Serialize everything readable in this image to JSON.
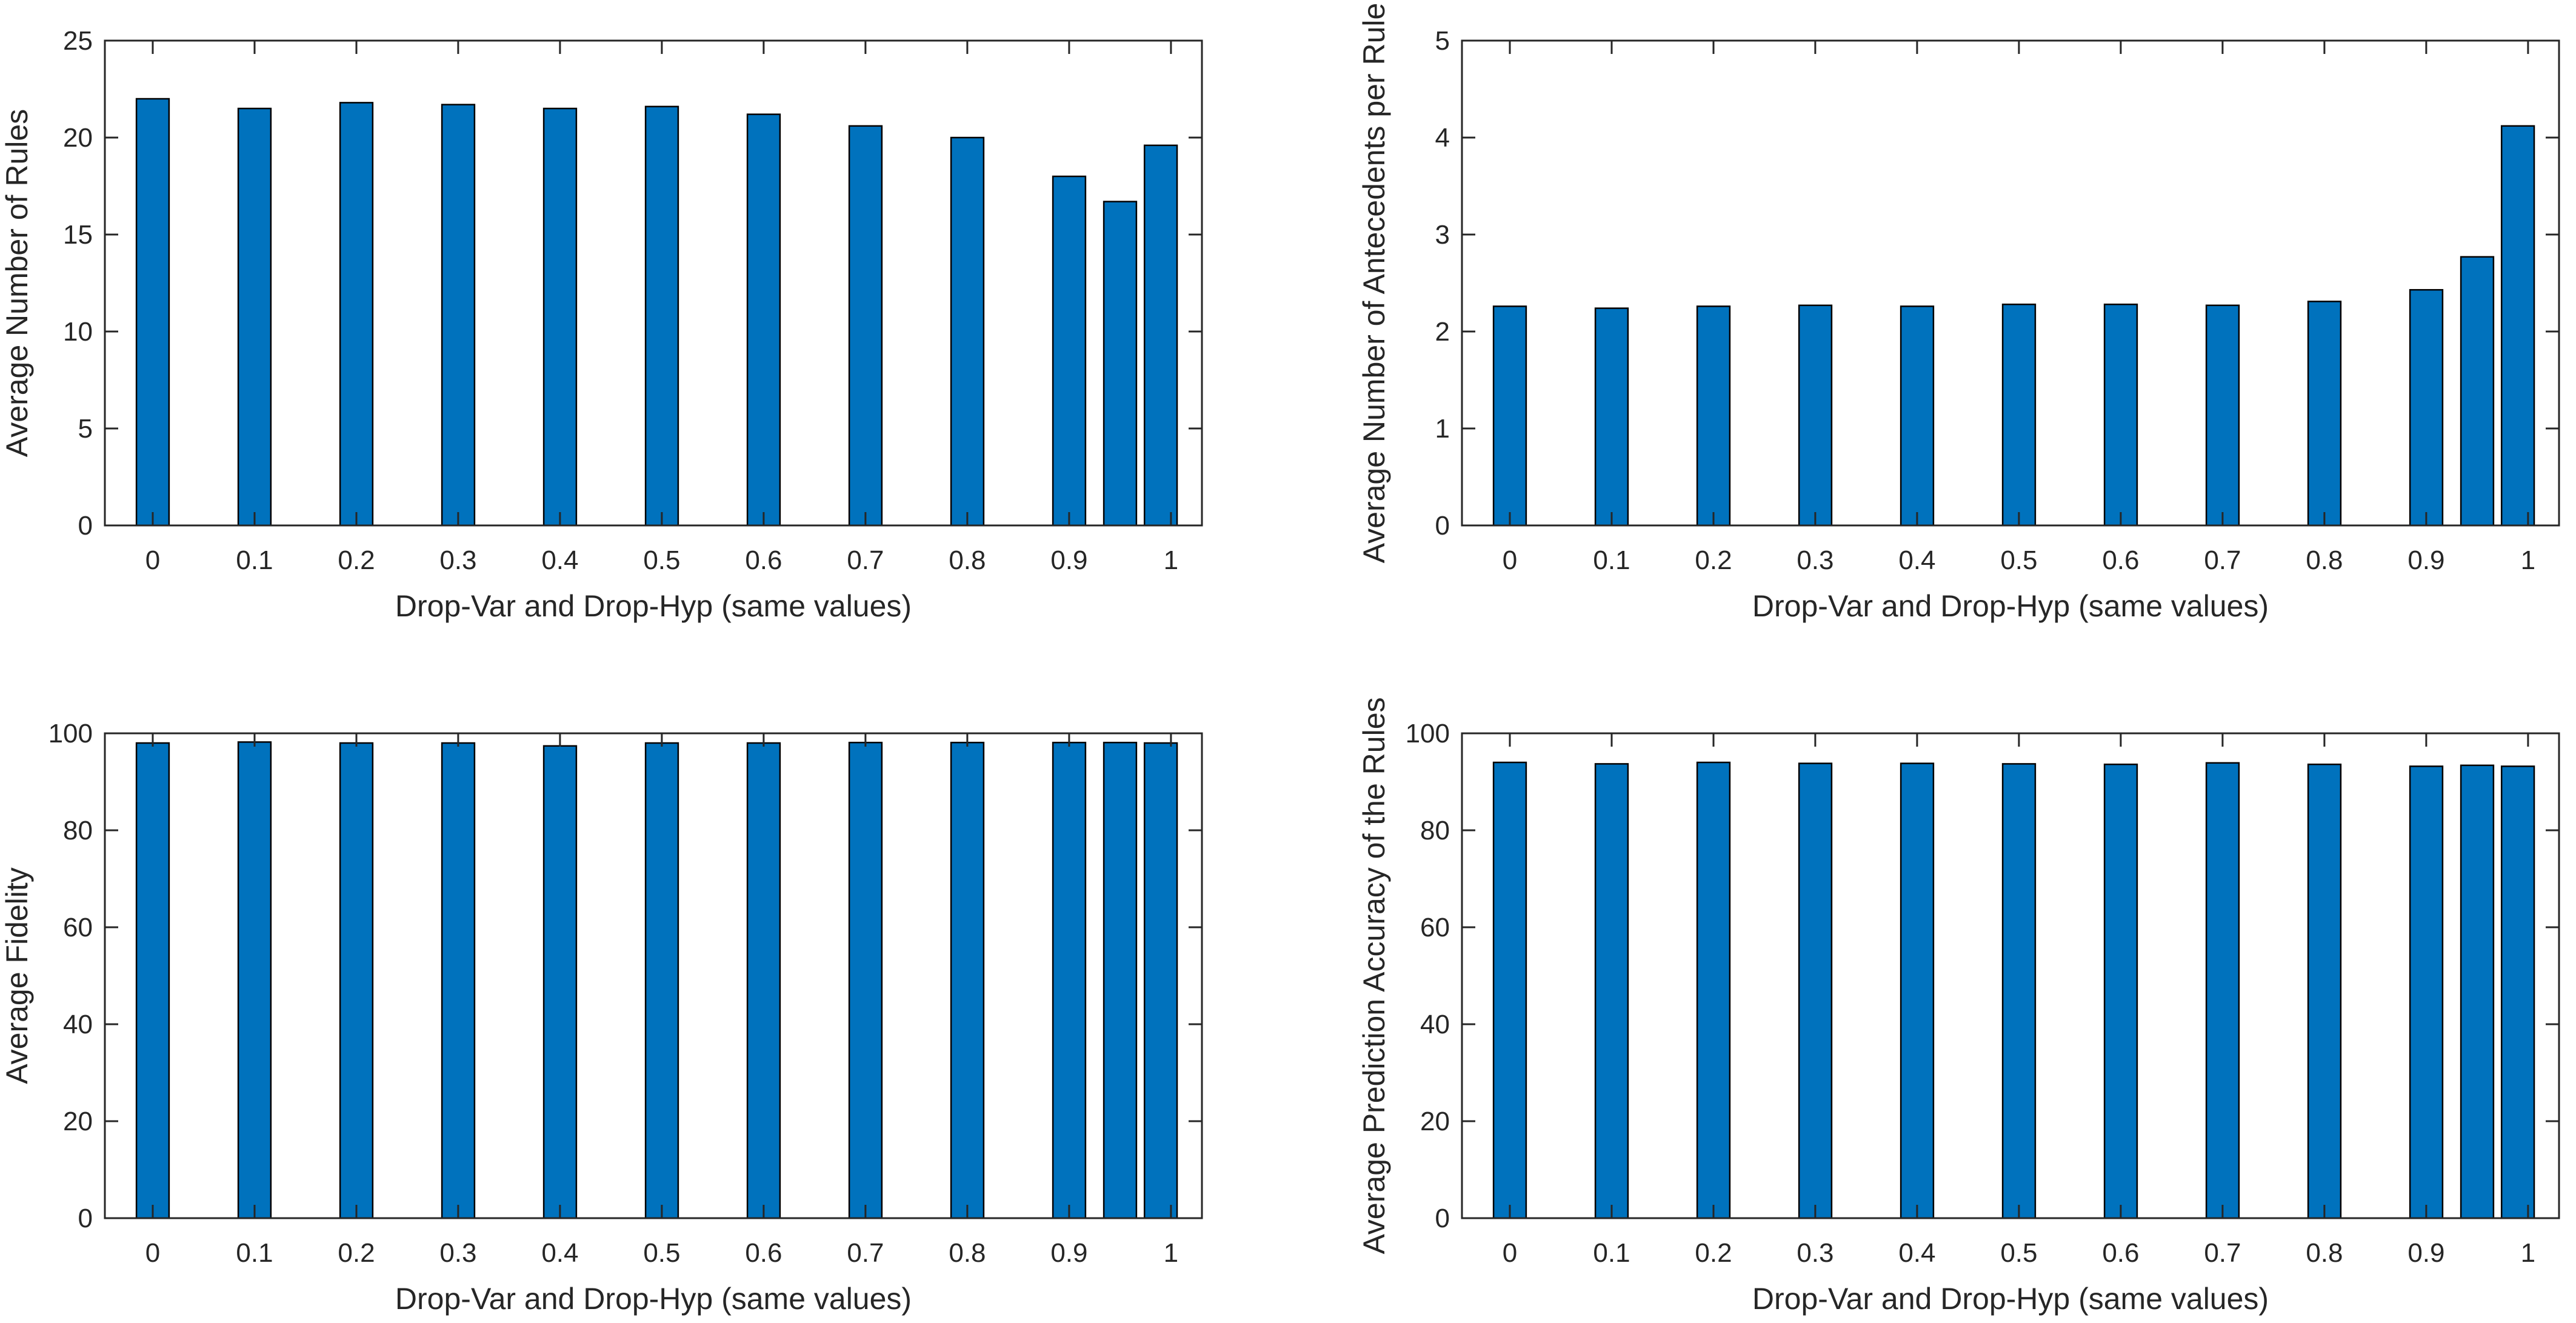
{
  "figure": {
    "background": "#ffffff",
    "bar_fill": "#0072BD",
    "bar_edge": "#000000",
    "axis_color": "#262626",
    "text_color": "#262626"
  },
  "chart_data": [
    {
      "id": "avg-number-of-rules",
      "type": "bar",
      "title": "",
      "xlabel": "Drop-Var and Drop-Hyp (same values)",
      "ylabel": "Average Number of Rules",
      "x": [
        0,
        0.1,
        0.2,
        0.3,
        0.4,
        0.5,
        0.6,
        0.7,
        0.8,
        0.9,
        0.95,
        0.99
      ],
      "values": [
        22.0,
        21.5,
        21.8,
        21.7,
        21.5,
        21.6,
        21.2,
        20.6,
        20.0,
        18.0,
        16.7,
        19.6
      ],
      "bar_width": 0.032,
      "xlim": [
        -0.047,
        1.0304
      ],
      "ylim": [
        0,
        25
      ],
      "yticks": [
        0,
        5,
        10,
        15,
        20,
        25
      ],
      "xticks": [
        0,
        0.1,
        0.2,
        0.3,
        0.4,
        0.5,
        0.6,
        0.7,
        0.8,
        0.9,
        1
      ],
      "xtick_labels": [
        "0",
        "0.1",
        "0.2",
        "0.3",
        "0.4",
        "0.5",
        "0.6",
        "0.7",
        "0.8",
        "0.9",
        "1"
      ],
      "grid": false,
      "legend": null
    },
    {
      "id": "avg-number-of-antecedents-per-rule",
      "type": "bar",
      "title": "",
      "xlabel": "Drop-Var and Drop-Hyp (same values)",
      "ylabel": "Average Number of Antecedents per Rule",
      "x": [
        0,
        0.1,
        0.2,
        0.3,
        0.4,
        0.5,
        0.6,
        0.7,
        0.8,
        0.9,
        0.95,
        0.99
      ],
      "values": [
        2.26,
        2.24,
        2.26,
        2.27,
        2.26,
        2.28,
        2.28,
        2.27,
        2.31,
        2.43,
        2.77,
        4.12
      ],
      "bar_width": 0.032,
      "xlim": [
        -0.047,
        1.0304
      ],
      "ylim": [
        0,
        5
      ],
      "yticks": [
        0,
        1,
        2,
        3,
        4,
        5
      ],
      "xticks": [
        0,
        0.1,
        0.2,
        0.3,
        0.4,
        0.5,
        0.6,
        0.7,
        0.8,
        0.9,
        1
      ],
      "xtick_labels": [
        "0",
        "0.1",
        "0.2",
        "0.3",
        "0.4",
        "0.5",
        "0.6",
        "0.7",
        "0.8",
        "0.9",
        "1"
      ],
      "grid": false,
      "legend": null
    },
    {
      "id": "avg-fidelity",
      "type": "bar",
      "title": "",
      "xlabel": "Drop-Var and Drop-Hyp (same values)",
      "ylabel": "Average Fidelity",
      "x": [
        0,
        0.1,
        0.2,
        0.3,
        0.4,
        0.5,
        0.6,
        0.7,
        0.8,
        0.9,
        0.95,
        0.99
      ],
      "values": [
        98.0,
        98.2,
        98.0,
        98.0,
        97.4,
        98.0,
        98.0,
        98.1,
        98.1,
        98.1,
        98.1,
        98.0
      ],
      "bar_width": 0.032,
      "xlim": [
        -0.047,
        1.0304
      ],
      "ylim": [
        0,
        100
      ],
      "yticks": [
        0,
        20,
        40,
        60,
        80,
        100
      ],
      "xticks": [
        0,
        0.1,
        0.2,
        0.3,
        0.4,
        0.5,
        0.6,
        0.7,
        0.8,
        0.9,
        1
      ],
      "xtick_labels": [
        "0",
        "0.1",
        "0.2",
        "0.3",
        "0.4",
        "0.5",
        "0.6",
        "0.7",
        "0.8",
        "0.9",
        "1"
      ],
      "grid": false,
      "legend": null
    },
    {
      "id": "avg-prediction-accuracy-of-the-rules",
      "type": "bar",
      "title": "",
      "xlabel": "Drop-Var and Drop-Hyp (same values)",
      "ylabel": "Average Prediction Accuracy of the Rules",
      "x": [
        0,
        0.1,
        0.2,
        0.3,
        0.4,
        0.5,
        0.6,
        0.7,
        0.8,
        0.9,
        0.95,
        0.99
      ],
      "values": [
        94.0,
        93.7,
        94.0,
        93.8,
        93.8,
        93.7,
        93.6,
        93.9,
        93.6,
        93.2,
        93.4,
        93.2
      ],
      "bar_width": 0.032,
      "xlim": [
        -0.047,
        1.0304
      ],
      "ylim": [
        0,
        100
      ],
      "yticks": [
        0,
        20,
        40,
        60,
        80,
        100
      ],
      "xticks": [
        0,
        0.1,
        0.2,
        0.3,
        0.4,
        0.5,
        0.6,
        0.7,
        0.8,
        0.9,
        1
      ],
      "xtick_labels": [
        "0",
        "0.1",
        "0.2",
        "0.3",
        "0.4",
        "0.5",
        "0.6",
        "0.7",
        "0.8",
        "0.9",
        "1"
      ],
      "grid": false,
      "legend": null
    }
  ]
}
